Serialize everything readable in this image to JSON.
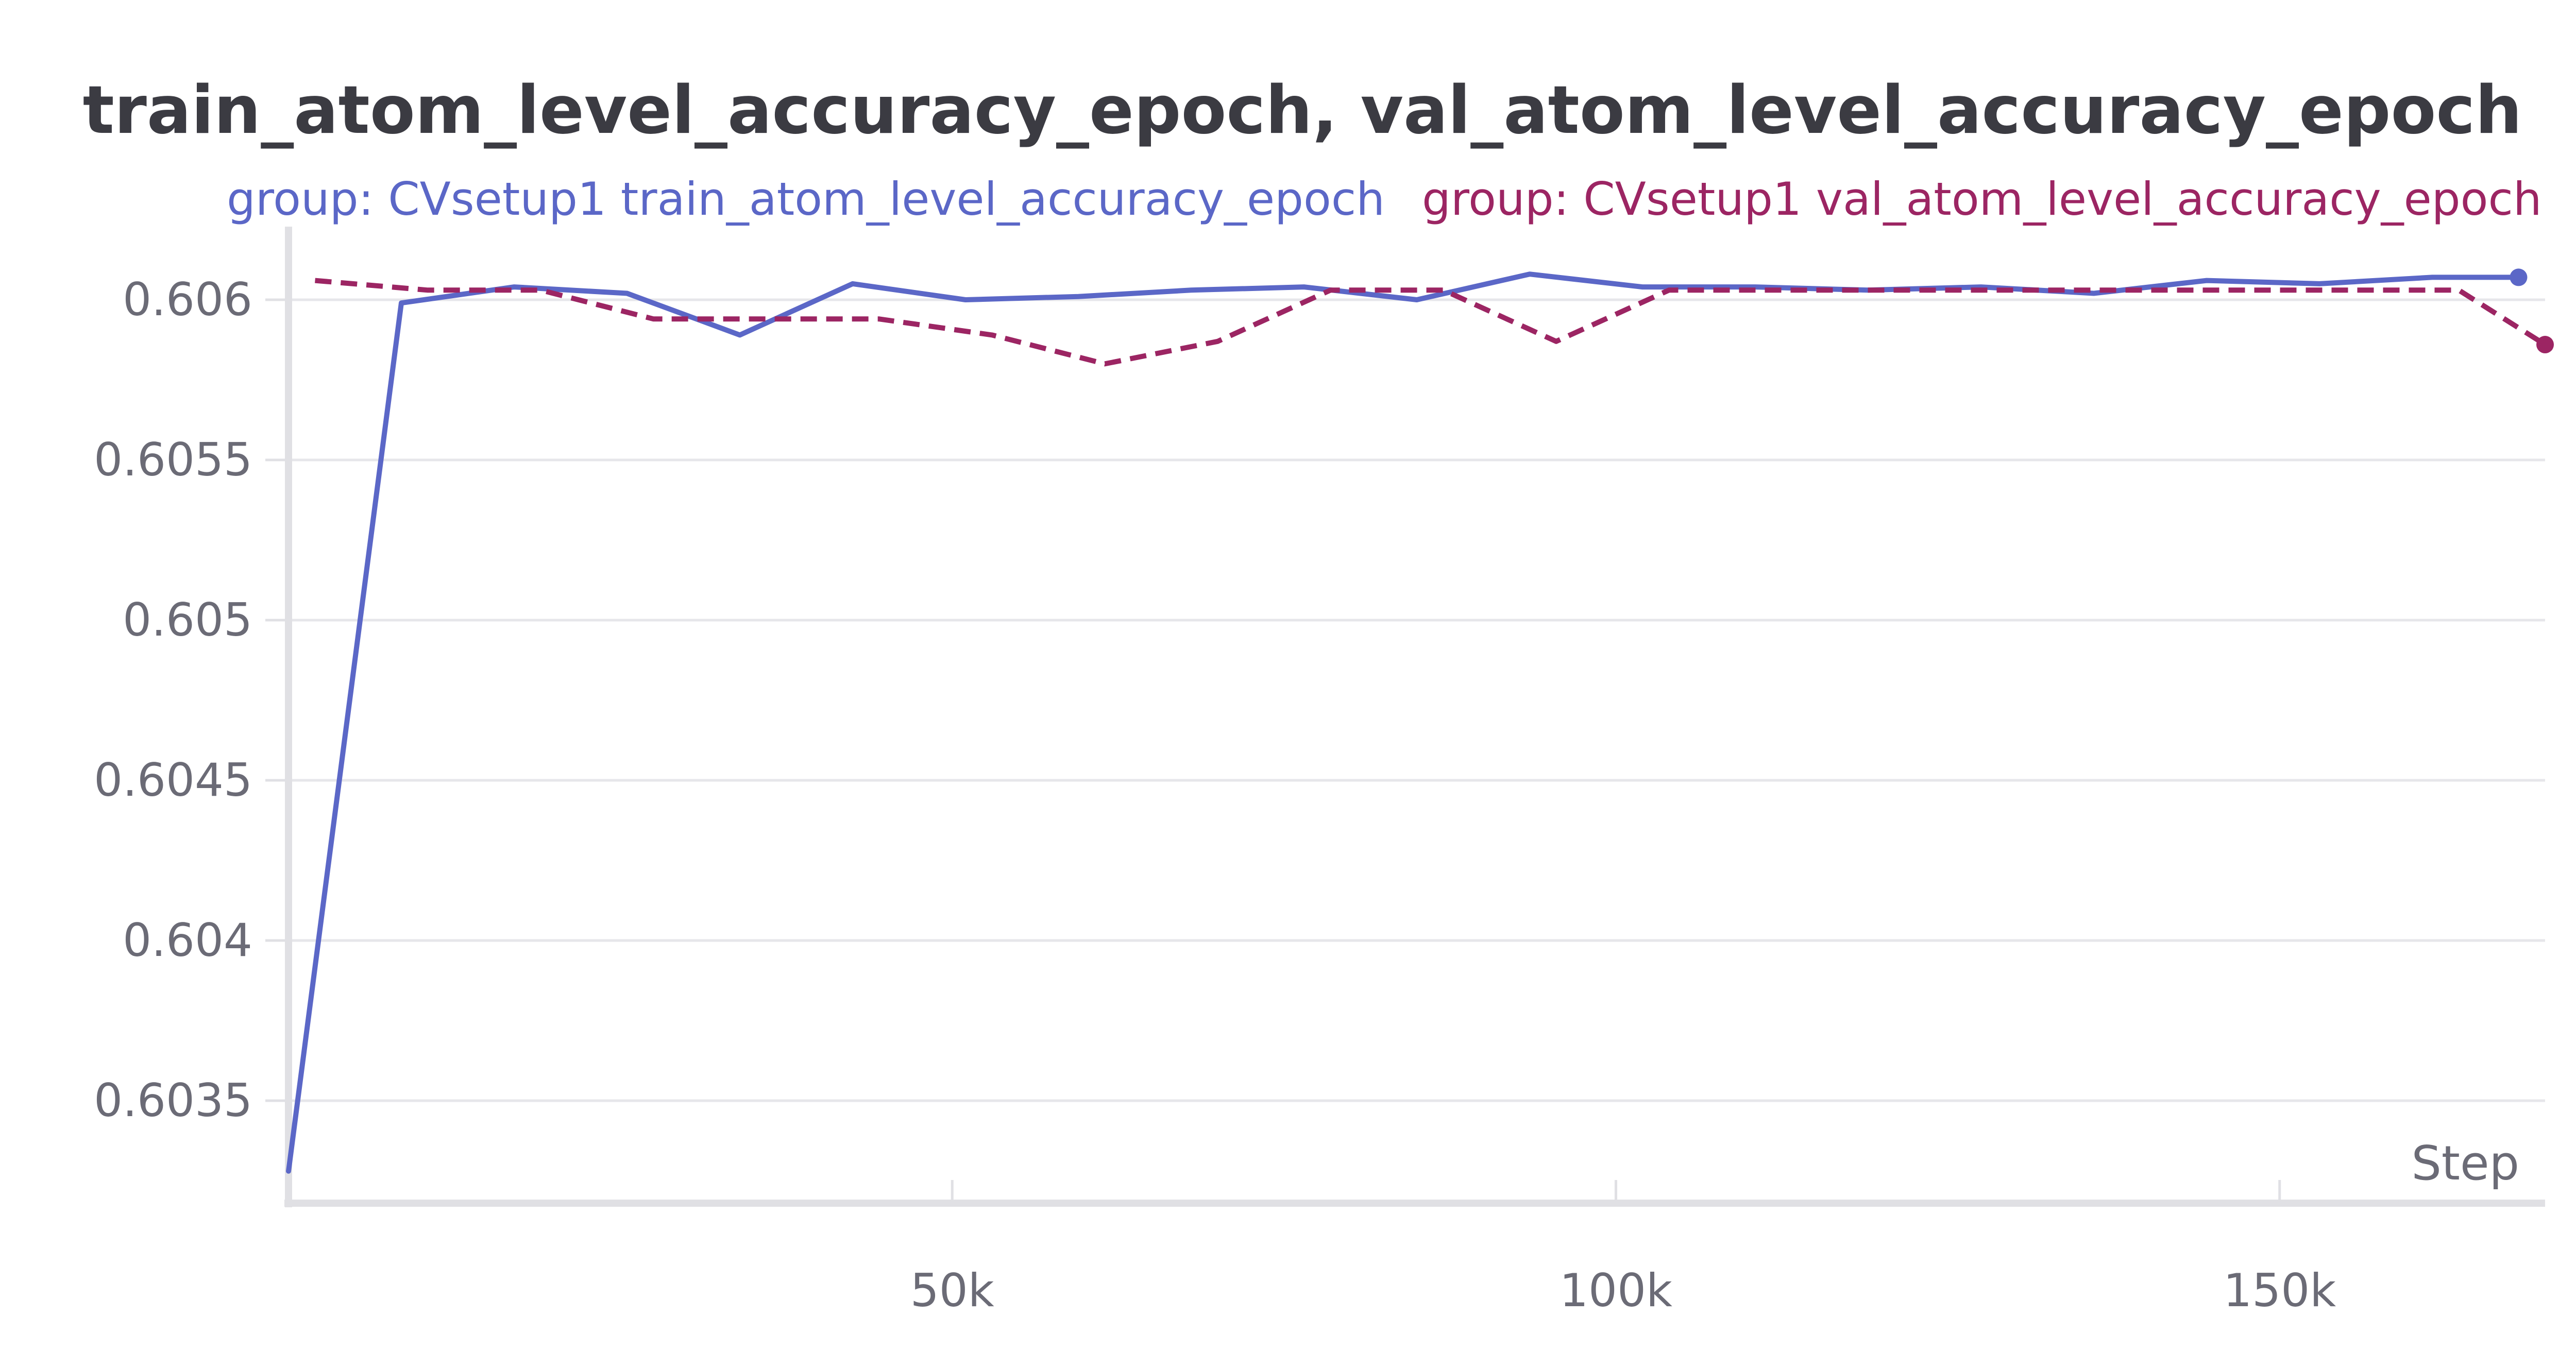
{
  "chart_data": {
    "type": "line",
    "title": "train_atom_level_accuracy_epoch, val_atom_level_accuracy_epoch",
    "xlabel": "Step",
    "ylabel": "",
    "xlim": [
      0,
      170000
    ],
    "ylim": [
      0.60318,
      0.60618
    ],
    "grid": true,
    "legend_position": "top",
    "xticks": [
      {
        "value": 50000,
        "label": "50k"
      },
      {
        "value": 100000,
        "label": "100k"
      },
      {
        "value": 150000,
        "label": "150k"
      }
    ],
    "yticks": [
      {
        "value": 0.6035,
        "label": "0.6035"
      },
      {
        "value": 0.604,
        "label": "0.604"
      },
      {
        "value": 0.6045,
        "label": "0.6045"
      },
      {
        "value": 0.605,
        "label": "0.605"
      },
      {
        "value": 0.6055,
        "label": "0.6055"
      },
      {
        "value": 0.606,
        "label": "0.606"
      }
    ],
    "series": [
      {
        "name": "group: CVsetup1 train_atom_level_accuracy_epoch",
        "color": "#5b67c7",
        "dash": "solid",
        "end_marker": true,
        "x": [
          0,
          8500,
          17000,
          25500,
          34000,
          42500,
          51000,
          59500,
          68000,
          76500,
          85000,
          93500,
          102000,
          110500,
          119000,
          127500,
          136000,
          144500,
          153000,
          161500,
          168000
        ],
        "y": [
          0.60328,
          0.60599,
          0.60604,
          0.60602,
          0.60589,
          0.60605,
          0.606,
          0.60601,
          0.60603,
          0.60604,
          0.606,
          0.60608,
          0.60604,
          0.60604,
          0.60603,
          0.60604,
          0.60602,
          0.60606,
          0.60605,
          0.60607,
          0.60607
        ]
      },
      {
        "name": "group: CVsetup1 val_atom_level_accuracy_epoch",
        "color": "#9c2563",
        "dash": "dashed",
        "end_marker": true,
        "x": [
          2000,
          10500,
          19000,
          27500,
          36000,
          44500,
          53000,
          61500,
          70000,
          78500,
          87000,
          95500,
          104000,
          112500,
          121000,
          129500,
          138000,
          146500,
          155000,
          163500,
          170000
        ],
        "y": [
          0.60606,
          0.60603,
          0.60603,
          0.60594,
          0.60594,
          0.60594,
          0.60589,
          0.6058,
          0.60587,
          0.60603,
          0.60603,
          0.60587,
          0.60603,
          0.60603,
          0.60603,
          0.60603,
          0.60603,
          0.60603,
          0.60603,
          0.60603,
          0.60586
        ]
      }
    ]
  }
}
